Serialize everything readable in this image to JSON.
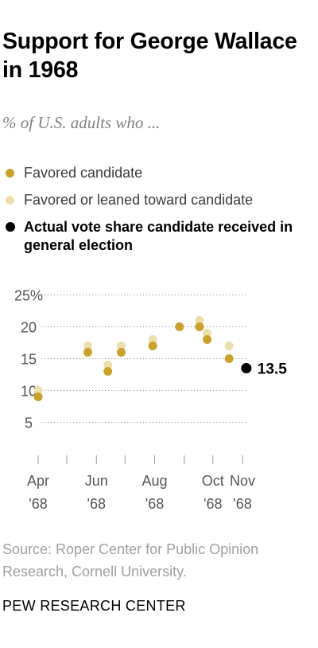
{
  "header": {
    "title": "Support for George Wallace in 1968",
    "subtitle": "% of U.S. adults who ..."
  },
  "legend": {
    "items": [
      {
        "label": "Favored candidate",
        "color": "#c9a22d"
      },
      {
        "label": "Favored or leaned toward candidate",
        "color": "#ecdfae"
      },
      {
        "label": "Actual vote share candidate received in general election",
        "color": "#000000"
      }
    ]
  },
  "chart_data": {
    "type": "scatter",
    "ylim": [
      0,
      25
    ],
    "y_ticks": [
      5,
      10,
      15,
      20,
      25
    ],
    "y_tick_labels": [
      "5",
      "10",
      "15",
      "20",
      "25%"
    ],
    "x_ticks": [
      {
        "date": "1968-04-01",
        "month": "Apr",
        "year": "'68"
      },
      {
        "date": "1968-06-01",
        "month": "Jun",
        "year": "'68"
      },
      {
        "date": "1968-08-01",
        "month": "Aug",
        "year": "'68"
      },
      {
        "date": "1968-10-01",
        "month": "Oct",
        "year": "'68"
      },
      {
        "date": "1968-11-01",
        "month": "Nov",
        "year": "'68"
      }
    ],
    "minor_x_ticks": [
      "1968-05-01",
      "1968-07-01",
      "1968-09-01"
    ],
    "series": [
      {
        "name": "Favored or leaned toward candidate",
        "color": "#ecdfae",
        "points": [
          {
            "x": "1968-04-01",
            "y": 10
          },
          {
            "x": "1968-05-23",
            "y": 17
          },
          {
            "x": "1968-06-13",
            "y": 14
          },
          {
            "x": "1968-06-27",
            "y": 17
          },
          {
            "x": "1968-07-30",
            "y": 18
          },
          {
            "x": "1968-08-27",
            "y": 20
          },
          {
            "x": "1968-09-17",
            "y": 21
          },
          {
            "x": "1968-09-25",
            "y": 19
          },
          {
            "x": "1968-10-18",
            "y": 17
          }
        ]
      },
      {
        "name": "Favored candidate",
        "color": "#c9a22d",
        "points": [
          {
            "x": "1968-04-01",
            "y": 9
          },
          {
            "x": "1968-05-23",
            "y": 16
          },
          {
            "x": "1968-06-13",
            "y": 13
          },
          {
            "x": "1968-06-27",
            "y": 16
          },
          {
            "x": "1968-07-30",
            "y": 17
          },
          {
            "x": "1968-08-27",
            "y": 20
          },
          {
            "x": "1968-09-17",
            "y": 20
          },
          {
            "x": "1968-09-25",
            "y": 18
          },
          {
            "x": "1968-10-18",
            "y": 15
          }
        ]
      },
      {
        "name": "Actual vote share candidate received in general election",
        "color": "#000000",
        "points": [
          {
            "x": "1968-11-05",
            "y": 13.5,
            "label": "13.5"
          }
        ]
      }
    ]
  },
  "footer": {
    "source": "Source: Roper Center for Public Opinion Research, Cornell University.",
    "brand": "PEW RESEARCH CENTER"
  }
}
